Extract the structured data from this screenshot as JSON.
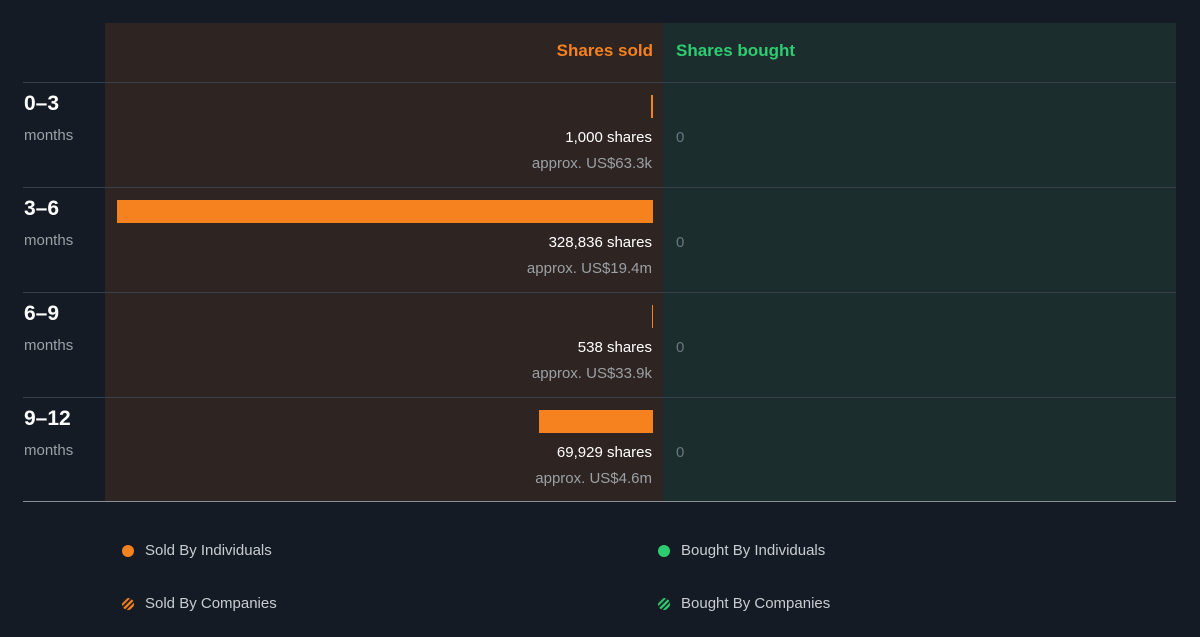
{
  "colors": {
    "sold": "#f5821f",
    "bought": "#2ecc71"
  },
  "headers": {
    "sold": "Shares sold",
    "bought": "Shares bought"
  },
  "chart_data": {
    "type": "bar",
    "orientation": "horizontal",
    "categories": [
      "0–3 months",
      "3–6 months",
      "6–9 months",
      "9–12 months"
    ],
    "series": [
      {
        "name": "Shares sold",
        "values": [
          1000,
          328836,
          538,
          69929
        ]
      },
      {
        "name": "Shares bought",
        "values": [
          0,
          0,
          0,
          0
        ]
      }
    ]
  },
  "rows": [
    {
      "period": "0–3",
      "unit": "months",
      "sold_shares": 1000,
      "sold_text": "1,000 shares",
      "sold_approx": "approx. US$63.3k",
      "bought_text": "0"
    },
    {
      "period": "3–6",
      "unit": "months",
      "sold_shares": 328836,
      "sold_text": "328,836 shares",
      "sold_approx": "approx. US$19.4m",
      "bought_text": "0"
    },
    {
      "period": "6–9",
      "unit": "months",
      "sold_shares": 538,
      "sold_text": "538 shares",
      "sold_approx": "approx. US$33.9k",
      "bought_text": "0"
    },
    {
      "period": "9–12",
      "unit": "months",
      "sold_shares": 69929,
      "sold_text": "69,929 shares",
      "sold_approx": "approx. US$4.6m",
      "bought_text": "0"
    }
  ],
  "legend": {
    "sold_individuals": "Sold By Individuals",
    "bought_individuals": "Bought By Individuals",
    "sold_companies": "Sold By Companies",
    "bought_companies": "Bought By Companies"
  }
}
